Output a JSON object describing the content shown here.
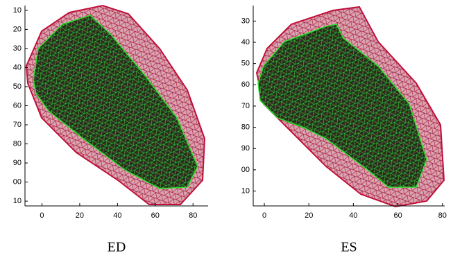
{
  "chart_data": [
    {
      "type": "mesh",
      "title": "ED",
      "xlim": [
        -9,
        88
      ],
      "xticks": [
        0,
        20,
        40,
        60,
        80
      ],
      "ylim": [
        7.5,
        112.5
      ],
      "y_inverted": true,
      "yticks": [
        10,
        20,
        30,
        40,
        50,
        60,
        70,
        80,
        90,
        {
          "value": 100,
          "label": "00"
        },
        {
          "value": 110,
          "label": "10"
        }
      ]
    },
    {
      "type": "mesh",
      "title": "ES",
      "xlim": [
        -5,
        81
      ],
      "xticks": [
        0,
        20,
        40,
        60,
        80
      ],
      "ylim": [
        22.7,
        117
      ],
      "y_inverted": true,
      "yticks": [
        30,
        40,
        50,
        60,
        70,
        80,
        90,
        {
          "value": 100,
          "label": "00"
        },
        {
          "value": 110,
          "label": "10"
        }
      ]
    }
  ]
}
